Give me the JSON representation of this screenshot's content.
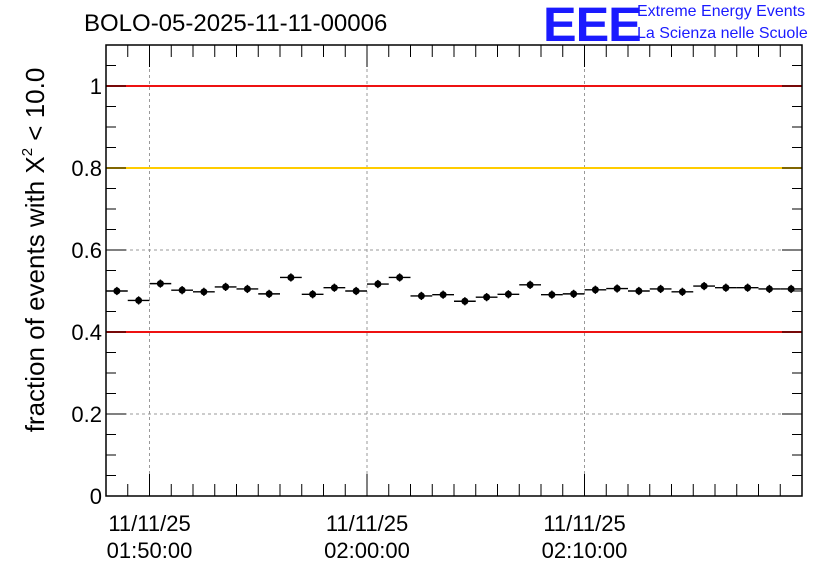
{
  "header": {
    "run_title": "BOLO-05-2025-11-11-00006",
    "logo_text": "EEE",
    "logo_line1": "Extreme Energy Events",
    "logo_line2": "La Scienza nelle Scuole"
  },
  "axis": {
    "ylabel_pre": "fraction of events with X",
    "ylabel_sup": "2",
    "ylabel_post": " < 10.0"
  },
  "colors": {
    "red_line": "#ee1111",
    "yellow_line": "#ffcc00",
    "logo_blue": "#1a1aff",
    "grid": "#999999"
  },
  "chart_data": {
    "type": "scatter",
    "ylim": [
      0,
      1.1
    ],
    "xlim_minutes": [
      0,
      32
    ],
    "x_tick_labels": [
      {
        "minute": 2,
        "date": "11/11/25",
        "time": "01:50:00"
      },
      {
        "minute": 12,
        "date": "11/11/25",
        "time": "02:00:00"
      },
      {
        "minute": 22,
        "date": "11/11/25",
        "time": "02:10:00"
      }
    ],
    "y_ticks": [
      0,
      0.2,
      0.4,
      0.6,
      0.8,
      1
    ],
    "y_tick_labels": [
      "0",
      "0.2",
      "0.4",
      "0.6",
      "0.8",
      "1"
    ],
    "reference_lines": [
      {
        "y": 1.0,
        "color": "red"
      },
      {
        "y": 0.8,
        "color": "yellow"
      },
      {
        "y": 0.4,
        "color": "red"
      }
    ],
    "grid": true,
    "bin_width_minutes": 1,
    "series": [
      {
        "x_center_minutes": [
          0.5,
          1.5,
          2.5,
          3.5,
          4.5,
          5.5,
          6.5,
          7.5,
          8.5,
          9.5,
          10.5,
          11.5,
          12.5,
          13.5,
          14.5,
          15.5,
          16.5,
          17.5,
          18.5,
          19.5,
          20.5,
          21.5,
          22.5,
          23.5,
          24.5,
          25.5,
          26.5,
          27.5,
          28.5,
          29.5,
          30.5,
          31.5
        ],
        "y": [
          0.5,
          0.477,
          0.518,
          0.502,
          0.498,
          0.51,
          0.505,
          0.493,
          0.533,
          0.492,
          0.508,
          0.5,
          0.517,
          0.533,
          0.488,
          0.491,
          0.475,
          0.485,
          0.492,
          0.515,
          0.491,
          0.493,
          0.503,
          0.506,
          0.5,
          0.505,
          0.498,
          0.512,
          0.508,
          0.508,
          0.505,
          0.505
        ],
        "yerr": 0.01
      }
    ]
  }
}
